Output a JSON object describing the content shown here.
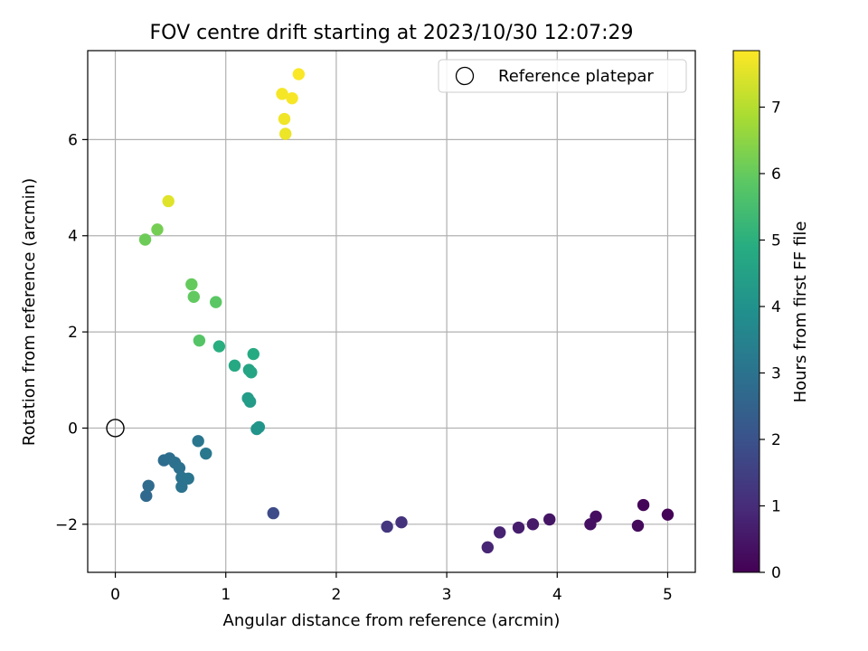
{
  "chart_data": {
    "type": "scatter",
    "title": "FOV centre drift starting at 2023/10/30 12:07:29",
    "xlabel": "Angular distance from reference (arcmin)",
    "ylabel": "Rotation from reference (arcmin)",
    "xlim": [
      -0.25,
      5.25
    ],
    "ylim": [
      -3.0,
      7.85
    ],
    "xticks": [
      0,
      1,
      2,
      3,
      4,
      5
    ],
    "xtick_labels": [
      "0",
      "1",
      "2",
      "3",
      "4",
      "5"
    ],
    "yticks": [
      -2,
      0,
      2,
      4,
      6
    ],
    "ytick_labels": [
      "−2",
      "0",
      "2",
      "4",
      "6"
    ],
    "grid": true,
    "legend": {
      "position": "top-right",
      "entries": [
        "Reference platepar"
      ]
    },
    "reference_point": {
      "x": 0,
      "y": 0,
      "label": "Reference platepar"
    },
    "colorbar": {
      "label": "Hours from first FF file",
      "colormap": "viridis",
      "range": [
        0,
        7.85
      ],
      "ticks": [
        0,
        1,
        2,
        3,
        4,
        5,
        6,
        7
      ],
      "tick_labels": [
        "0",
        "1",
        "2",
        "3",
        "4",
        "5",
        "6",
        "7"
      ]
    },
    "points": [
      {
        "x": 5.0,
        "y": -1.8,
        "c": 0.05
      },
      {
        "x": 4.78,
        "y": -1.6,
        "c": 0.1
      },
      {
        "x": 4.73,
        "y": -2.03,
        "c": 0.2
      },
      {
        "x": 4.35,
        "y": -1.84,
        "c": 0.3
      },
      {
        "x": 4.3,
        "y": -2.0,
        "c": 0.35
      },
      {
        "x": 3.93,
        "y": -1.9,
        "c": 0.45
      },
      {
        "x": 3.78,
        "y": -2.0,
        "c": 0.55
      },
      {
        "x": 3.65,
        "y": -2.07,
        "c": 0.65
      },
      {
        "x": 3.48,
        "y": -2.17,
        "c": 0.75
      },
      {
        "x": 3.37,
        "y": -2.48,
        "c": 0.85
      },
      {
        "x": 2.59,
        "y": -1.96,
        "c": 1.15
      },
      {
        "x": 2.46,
        "y": -2.05,
        "c": 1.25
      },
      {
        "x": 1.43,
        "y": -1.77,
        "c": 1.8
      },
      {
        "x": 0.28,
        "y": -1.41,
        "c": 2.7
      },
      {
        "x": 0.3,
        "y": -1.2,
        "c": 2.75
      },
      {
        "x": 0.44,
        "y": -0.67,
        "c": 2.8
      },
      {
        "x": 0.49,
        "y": -0.63,
        "c": 2.85
      },
      {
        "x": 0.54,
        "y": -0.72,
        "c": 2.9
      },
      {
        "x": 0.58,
        "y": -0.83,
        "c": 2.95
      },
      {
        "x": 0.6,
        "y": -1.03,
        "c": 3.0
      },
      {
        "x": 0.6,
        "y": -1.22,
        "c": 3.0
      },
      {
        "x": 0.66,
        "y": -1.05,
        "c": 3.05
      },
      {
        "x": 0.75,
        "y": -0.27,
        "c": 3.1
      },
      {
        "x": 0.82,
        "y": -0.53,
        "c": 3.15
      },
      {
        "x": 1.28,
        "y": -0.02,
        "c": 4.05
      },
      {
        "x": 1.3,
        "y": 0.02,
        "c": 4.1
      },
      {
        "x": 1.22,
        "y": 0.55,
        "c": 4.3
      },
      {
        "x": 1.2,
        "y": 0.62,
        "c": 4.35
      },
      {
        "x": 1.21,
        "y": 1.21,
        "c": 4.6
      },
      {
        "x": 1.23,
        "y": 1.16,
        "c": 4.65
      },
      {
        "x": 1.08,
        "y": 1.3,
        "c": 4.75
      },
      {
        "x": 1.25,
        "y": 1.54,
        "c": 4.8
      },
      {
        "x": 0.94,
        "y": 1.7,
        "c": 4.95
      },
      {
        "x": 0.76,
        "y": 1.82,
        "c": 5.75
      },
      {
        "x": 0.91,
        "y": 2.62,
        "c": 5.85
      },
      {
        "x": 0.71,
        "y": 2.73,
        "c": 5.95
      },
      {
        "x": 0.69,
        "y": 2.99,
        "c": 6.0
      },
      {
        "x": 0.27,
        "y": 3.92,
        "c": 6.1
      },
      {
        "x": 0.38,
        "y": 4.13,
        "c": 6.2
      },
      {
        "x": 0.48,
        "y": 4.72,
        "c": 7.5
      },
      {
        "x": 1.54,
        "y": 6.12,
        "c": 7.65
      },
      {
        "x": 1.53,
        "y": 6.43,
        "c": 7.7
      },
      {
        "x": 1.51,
        "y": 6.95,
        "c": 7.75
      },
      {
        "x": 1.6,
        "y": 6.86,
        "c": 7.78
      },
      {
        "x": 1.66,
        "y": 7.36,
        "c": 7.82
      }
    ]
  }
}
